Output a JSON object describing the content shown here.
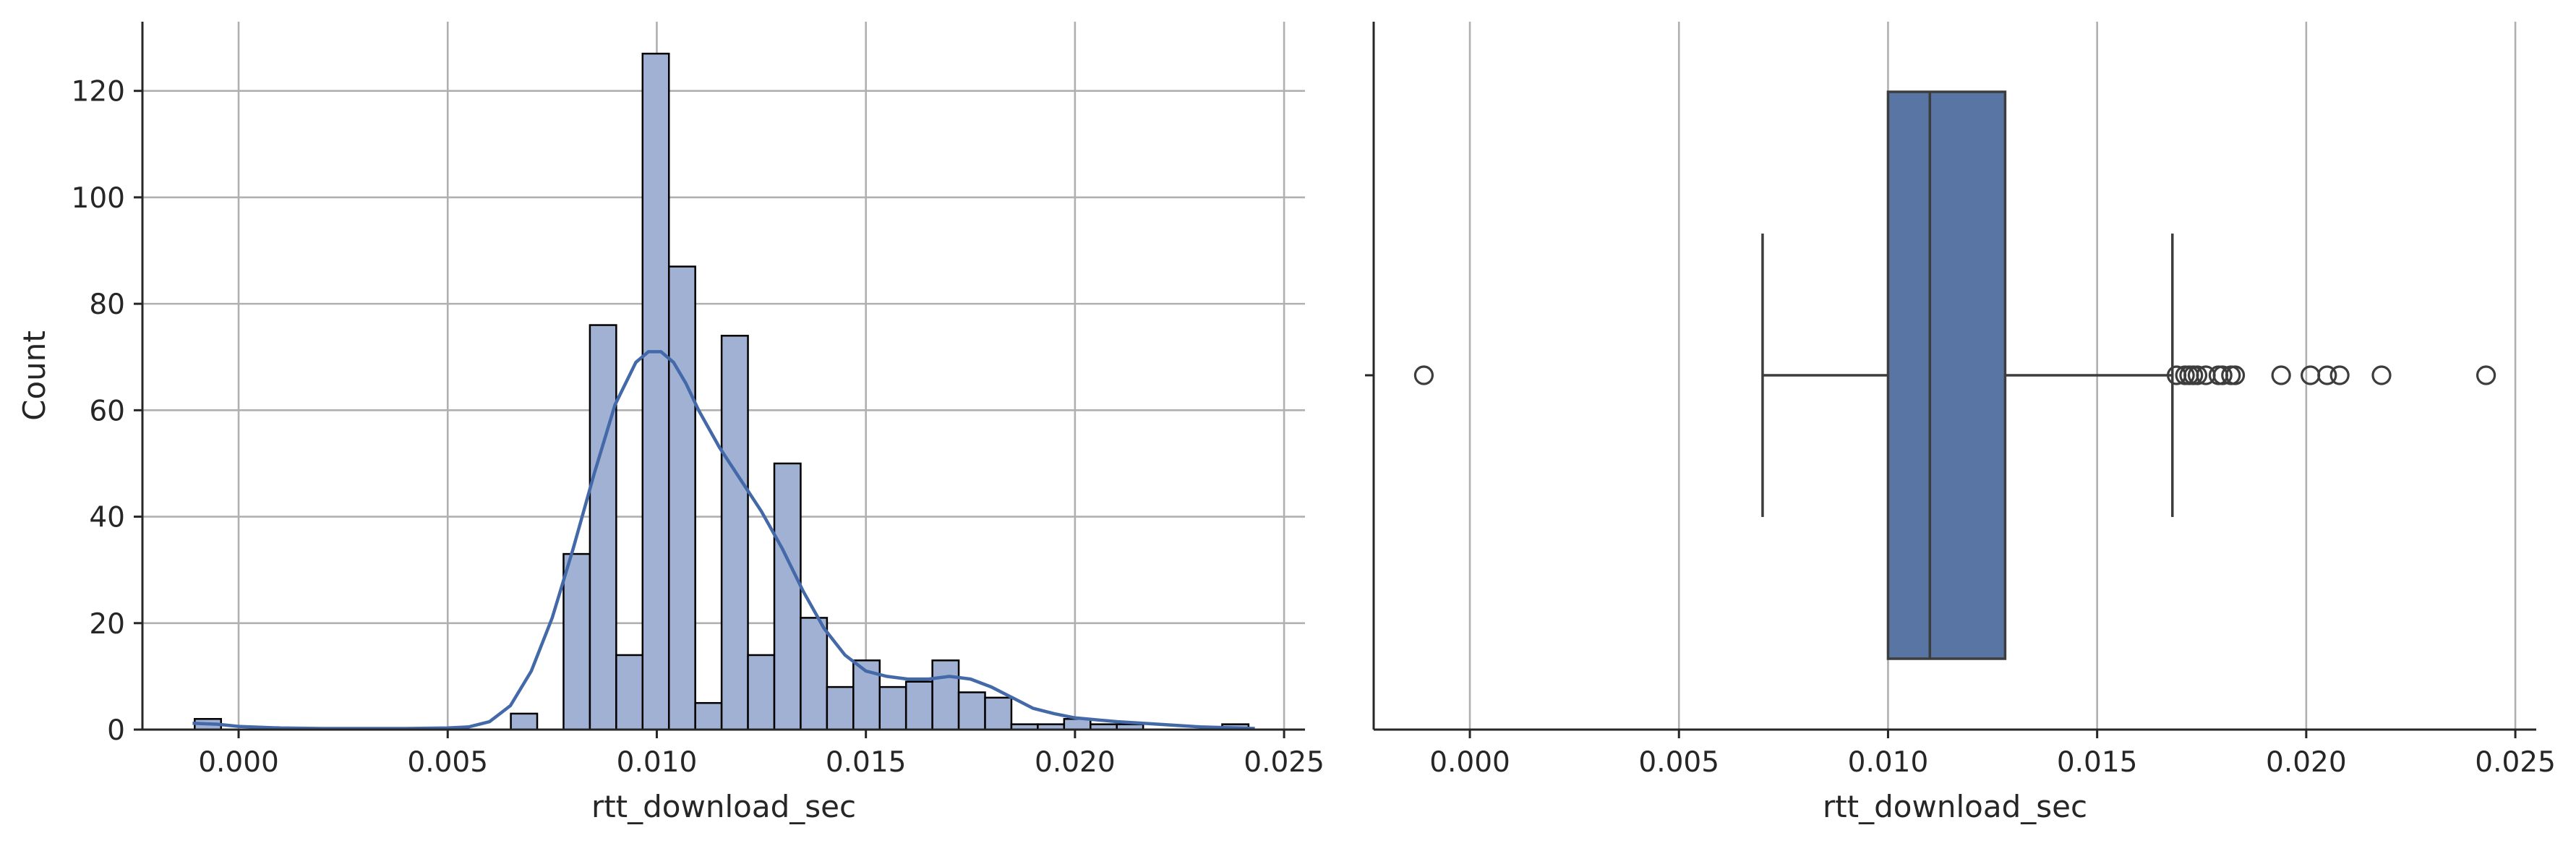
{
  "chart_data": [
    {
      "type": "bar",
      "subtype": "histogram_with_kde",
      "xlabel": "rtt_download_sec",
      "ylabel": "Count",
      "xlim": [
        -0.0023,
        0.0255
      ],
      "ylim": [
        0,
        133
      ],
      "xticks": [
        0.0,
        0.005,
        0.01,
        0.015,
        0.02,
        0.025
      ],
      "xtick_labels": [
        "0.000",
        "0.005",
        "0.010",
        "0.015",
        "0.020",
        "0.025"
      ],
      "yticks": [
        0,
        20,
        40,
        60,
        80,
        100,
        120
      ],
      "ytick_labels": [
        "0",
        "20",
        "40",
        "60",
        "80",
        "100",
        "120"
      ],
      "grid": true,
      "bar_color": "#a1b1d4",
      "bar_edge_color": "#000000",
      "kde_color": "#4469a8",
      "bin_width": 0.00063,
      "bins_start": [
        -0.00105,
        -0.00042,
        0.00021,
        0.00084,
        0.00147,
        0.0021,
        0.00273,
        0.00336,
        0.00399,
        0.00462,
        0.00525,
        0.00588,
        0.00651,
        0.00714,
        0.00777,
        0.0084,
        0.00903,
        0.00966,
        0.01029,
        0.01092,
        0.01155,
        0.01218,
        0.01281,
        0.01344,
        0.01407,
        0.0147,
        0.01533,
        0.01596,
        0.01659,
        0.01722,
        0.01785,
        0.01848,
        0.01911,
        0.01974,
        0.02037,
        0.021,
        0.02163,
        0.02226,
        0.02289,
        0.02352
      ],
      "counts": [
        2,
        0,
        0,
        0,
        0,
        0,
        0,
        0,
        0,
        0,
        0,
        0,
        3,
        0,
        33,
        76,
        14,
        127,
        87,
        5,
        74,
        14,
        50,
        21,
        8,
        13,
        8,
        9,
        13,
        7,
        6,
        1,
        1,
        2,
        1,
        1,
        0,
        0,
        0,
        1
      ],
      "kde": {
        "x": [
          -0.0011,
          -0.0005,
          0.0,
          0.001,
          0.002,
          0.003,
          0.004,
          0.005,
          0.0055,
          0.006,
          0.0065,
          0.007,
          0.0075,
          0.008,
          0.0085,
          0.009,
          0.0095,
          0.0098,
          0.0101,
          0.0104,
          0.0107,
          0.011,
          0.0115,
          0.012,
          0.0125,
          0.013,
          0.0135,
          0.014,
          0.0145,
          0.015,
          0.0155,
          0.016,
          0.0165,
          0.017,
          0.0175,
          0.018,
          0.0185,
          0.019,
          0.0195,
          0.02,
          0.021,
          0.022,
          0.023,
          0.0243
        ],
        "y": [
          1.2,
          1.0,
          0.6,
          0.3,
          0.2,
          0.2,
          0.2,
          0.3,
          0.5,
          1.5,
          4.5,
          11,
          21,
          34,
          48,
          61,
          69,
          71,
          71,
          69,
          65,
          60,
          53,
          47,
          41,
          34,
          26,
          19,
          14,
          11,
          10,
          9.5,
          9.5,
          10,
          9.5,
          8,
          6,
          4,
          3,
          2.2,
          1.5,
          1.0,
          0.5,
          0.2
        ]
      }
    },
    {
      "type": "box",
      "orientation": "horizontal",
      "xlabel": "rtt_download_sec",
      "ylabel": "",
      "xlim": [
        -0.0023,
        0.0255
      ],
      "xticks": [
        0.0,
        0.005,
        0.01,
        0.015,
        0.02,
        0.025
      ],
      "xtick_labels": [
        "0.000",
        "0.005",
        "0.010",
        "0.015",
        "0.020",
        "0.025"
      ],
      "grid": true,
      "box_color": "#5875a4",
      "whisker_low": 0.007,
      "q1": 0.01,
      "median": 0.011,
      "q3": 0.0128,
      "whisker_high": 0.0168,
      "outliers": [
        -0.0011,
        0.0169,
        0.0171,
        0.0172,
        0.0173,
        0.0174,
        0.0176,
        0.0179,
        0.018,
        0.0182,
        0.0183,
        0.0194,
        0.0201,
        0.0205,
        0.0208,
        0.0218,
        0.0243
      ]
    }
  ]
}
